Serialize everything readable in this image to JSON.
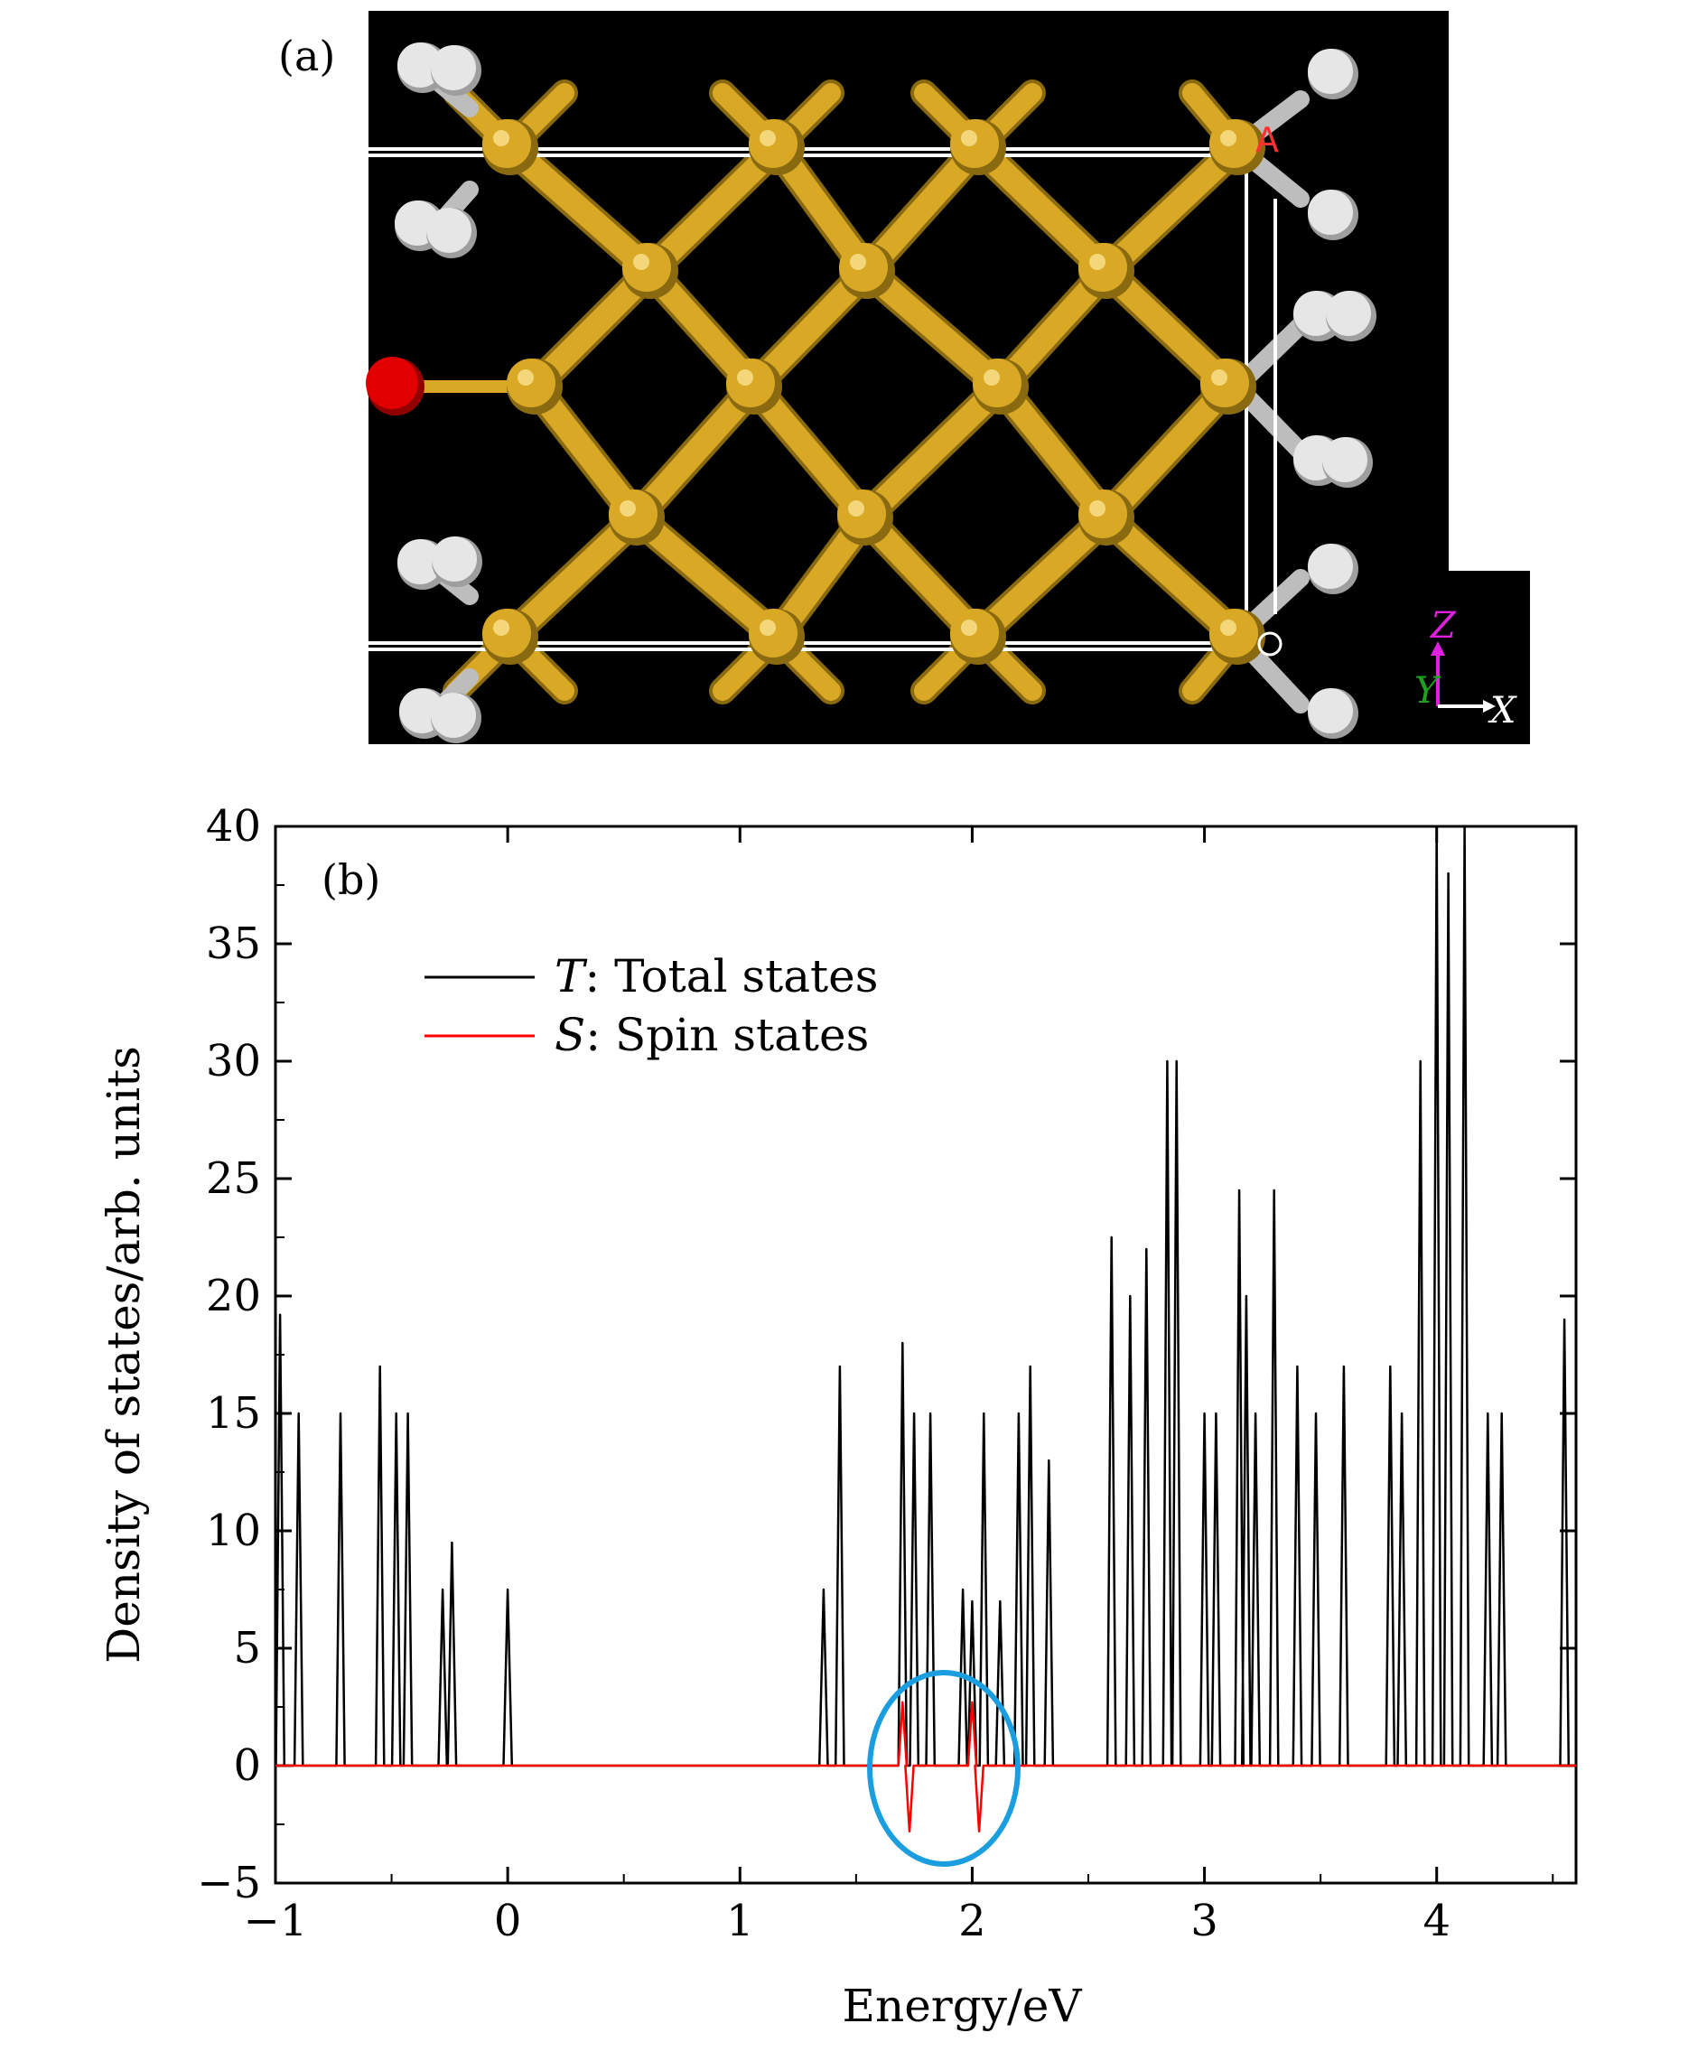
{
  "panel_a": {
    "label": "(a)",
    "axis_letters": {
      "z": "Z",
      "y": "Y",
      "x": "X"
    },
    "corner_letters": {
      "a": "A",
      "o": "O"
    },
    "colors": {
      "background": "#000000",
      "silicon": "#d9a825",
      "silicon_dark": "#8a6a10",
      "hydrogen": "#e6e6e6",
      "oxygen": "#e00000",
      "cell": "#ffffff",
      "axis_z": "#e020e0",
      "axis_y": "#20a020"
    }
  },
  "panel_b": {
    "label": "(b)",
    "legend": [
      {
        "symbol": "T",
        "text": ": Total states",
        "color": "#000000"
      },
      {
        "symbol": "S",
        "text": ": Spin states",
        "color": "#ff0000"
      }
    ],
    "highlight_color": "#1a9ee0"
  },
  "chart_data": {
    "type": "line",
    "title": "",
    "xlabel": "Energy/eV",
    "ylabel": "Density of states/arb. units",
    "xlim": [
      -1,
      4.6
    ],
    "ylim": [
      -5,
      40
    ],
    "xticks": [
      "−1",
      "0",
      "1",
      "2",
      "3",
      "4"
    ],
    "yticks": [
      "−5",
      "0",
      "5",
      "10",
      "15",
      "20",
      "25",
      "30",
      "35",
      "40"
    ],
    "grid": false,
    "legend_position": "top-left",
    "series": [
      {
        "name": "T: Total states",
        "color": "#000000",
        "peaks": [
          [
            -0.98,
            19.2
          ],
          [
            -0.9,
            15.0
          ],
          [
            -0.72,
            15.0
          ],
          [
            -0.55,
            17.0
          ],
          [
            -0.48,
            15.0
          ],
          [
            -0.43,
            15.0
          ],
          [
            -0.28,
            7.5
          ],
          [
            -0.24,
            9.5
          ],
          [
            0.0,
            7.5
          ],
          [
            1.36,
            7.5
          ],
          [
            1.43,
            17.0
          ],
          [
            1.7,
            18.0
          ],
          [
            1.75,
            15.0
          ],
          [
            1.82,
            15.0
          ],
          [
            1.96,
            7.5
          ],
          [
            2.0,
            7.0
          ],
          [
            2.05,
            15.0
          ],
          [
            2.12,
            7.0
          ],
          [
            2.2,
            15.0
          ],
          [
            2.25,
            17.0
          ],
          [
            2.33,
            13.0
          ],
          [
            2.6,
            22.5
          ],
          [
            2.68,
            20.0
          ],
          [
            2.75,
            22.0
          ],
          [
            2.84,
            30.0
          ],
          [
            2.88,
            30.0
          ],
          [
            3.0,
            15.0
          ],
          [
            3.05,
            15.0
          ],
          [
            3.15,
            24.5
          ],
          [
            3.18,
            20.0
          ],
          [
            3.22,
            15.0
          ],
          [
            3.3,
            24.5
          ],
          [
            3.4,
            17.0
          ],
          [
            3.48,
            15.0
          ],
          [
            3.6,
            17.0
          ],
          [
            3.8,
            17.0
          ],
          [
            3.85,
            15.0
          ],
          [
            3.93,
            30.0
          ],
          [
            4.0,
            40.0
          ],
          [
            4.05,
            38.0
          ],
          [
            4.12,
            40.0
          ],
          [
            4.22,
            15.0
          ],
          [
            4.28,
            15.0
          ],
          [
            4.55,
            19.0
          ]
        ]
      },
      {
        "name": "S: Spin states",
        "color": "#ff0000",
        "peaks": [
          [
            1.7,
            2.7
          ],
          [
            1.73,
            -2.8
          ],
          [
            2.0,
            2.7
          ],
          [
            2.03,
            -2.8
          ]
        ]
      }
    ]
  }
}
